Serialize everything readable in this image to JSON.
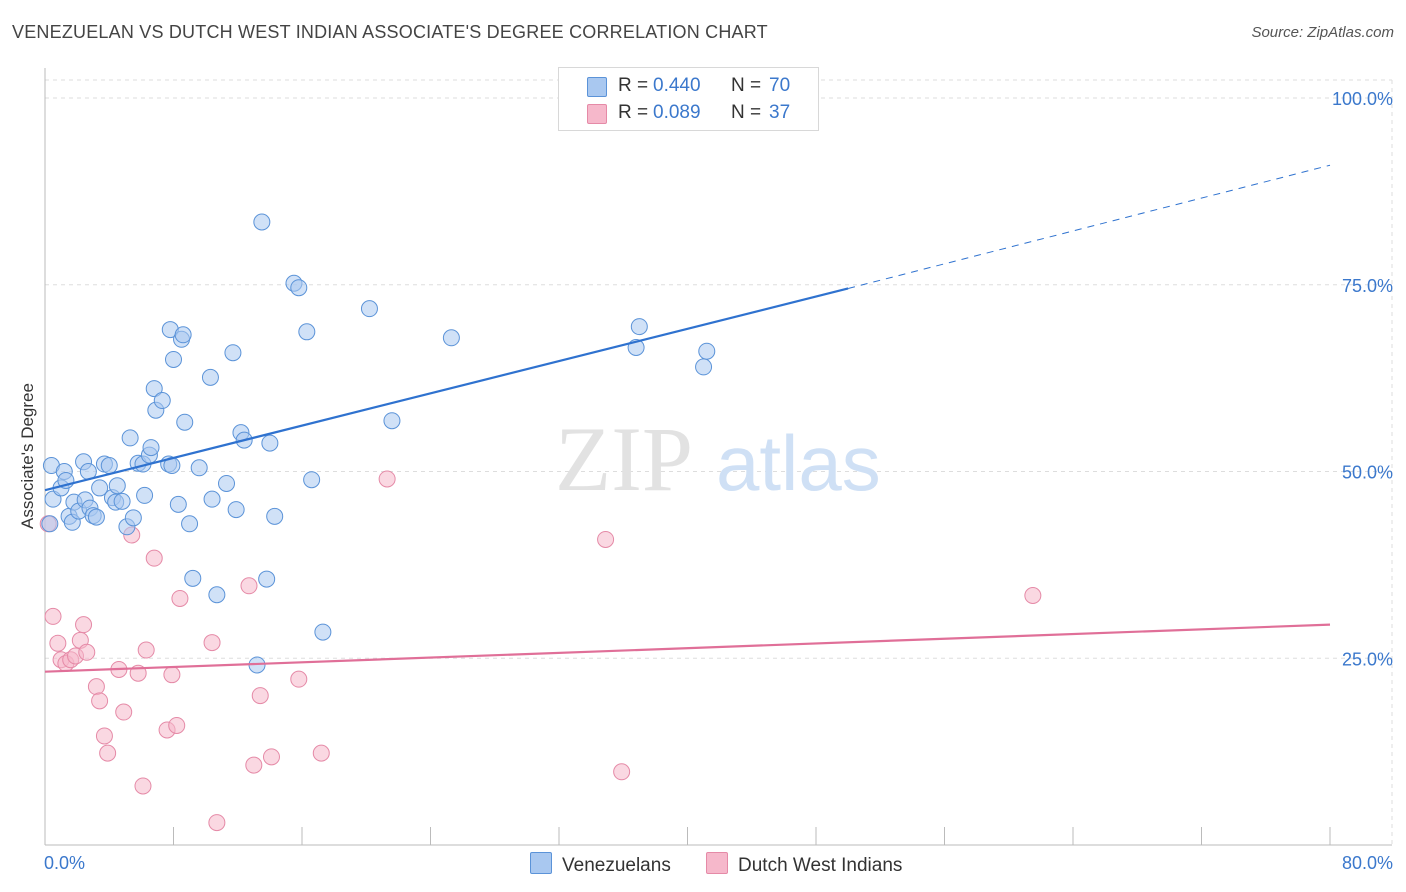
{
  "header": {
    "title": "VENEZUELAN VS DUTCH WEST INDIAN ASSOCIATE'S DEGREE CORRELATION CHART",
    "source": "Source: ZipAtlas.com"
  },
  "watermark": {
    "zip": "ZIP",
    "atlas": "atlas"
  },
  "legend": {
    "rows": [
      {
        "r_label": "R =",
        "r_value": "0.440",
        "n_label": "N =",
        "n_value": "70",
        "color": "#a9c8f0"
      },
      {
        "r_label": "R =",
        "r_value": "0.089",
        "n_label": "N =",
        "n_value": "37",
        "color": "#f6b8cb"
      }
    ]
  },
  "bottom_legend": {
    "venezuelans": "Venezuelans",
    "dutch": "Dutch West Indians"
  },
  "chart_data": {
    "type": "scatter",
    "title": "VENEZUELAN VS DUTCH WEST INDIAN ASSOCIATE'S DEGREE CORRELATION CHART",
    "xlabel": "",
    "ylabel": "Associate's Degree",
    "xlim": [
      0,
      80
    ],
    "ylim": [
      0,
      100
    ],
    "x_tick_labels": [
      "0.0%",
      "80.0%"
    ],
    "y_ticks": [
      25,
      50,
      75,
      100
    ],
    "y_tick_labels": [
      "25.0%",
      "50.0%",
      "75.0%",
      "100.0%"
    ],
    "grid": true,
    "legend_position": "top-center",
    "colors": {
      "venezuelan_fill": "#a9c8f0",
      "venezuelan_stroke": "#5b93d8",
      "venezuelan_line": "#2f72cf",
      "dutch_fill": "#f6b8cb",
      "dutch_stroke": "#e58aa7",
      "dutch_line": "#e06f98",
      "tick_label": "#3b78cc"
    },
    "series": [
      {
        "name": "Venezuelans",
        "r": 0.44,
        "n": 70,
        "trend": {
          "x": [
            0,
            50
          ],
          "y": [
            47.5,
            74.5
          ],
          "dashed_to": [
            80,
            91
          ]
        },
        "points": [
          [
            0.4,
            50.8
          ],
          [
            0.5,
            46.3
          ],
          [
            1.0,
            47.8
          ],
          [
            1.2,
            50.0
          ],
          [
            1.3,
            48.8
          ],
          [
            1.5,
            44.0
          ],
          [
            1.7,
            43.2
          ],
          [
            1.8,
            45.9
          ],
          [
            2.1,
            44.7
          ],
          [
            2.4,
            51.3
          ],
          [
            2.5,
            46.2
          ],
          [
            2.7,
            50.0
          ],
          [
            2.8,
            45.1
          ],
          [
            3.0,
            44.1
          ],
          [
            3.2,
            43.9
          ],
          [
            3.4,
            47.8
          ],
          [
            3.7,
            51.0
          ],
          [
            4.0,
            50.8
          ],
          [
            4.2,
            46.5
          ],
          [
            4.4,
            45.9
          ],
          [
            4.5,
            48.1
          ],
          [
            4.8,
            46.0
          ],
          [
            5.1,
            42.6
          ],
          [
            5.3,
            54.5
          ],
          [
            5.5,
            43.8
          ],
          [
            5.8,
            51.1
          ],
          [
            6.1,
            51.0
          ],
          [
            6.2,
            46.8
          ],
          [
            6.5,
            52.2
          ],
          [
            6.6,
            53.2
          ],
          [
            6.8,
            61.1
          ],
          [
            6.9,
            58.2
          ],
          [
            7.3,
            59.5
          ],
          [
            7.7,
            51.0
          ],
          [
            7.8,
            69.0
          ],
          [
            7.9,
            50.8
          ],
          [
            8.0,
            65.0
          ],
          [
            8.3,
            45.6
          ],
          [
            8.5,
            67.7
          ],
          [
            8.6,
            68.3
          ],
          [
            8.7,
            56.6
          ],
          [
            9.0,
            43.0
          ],
          [
            9.2,
            35.7
          ],
          [
            9.6,
            50.5
          ],
          [
            10.3,
            62.6
          ],
          [
            10.4,
            46.3
          ],
          [
            10.7,
            33.5
          ],
          [
            11.3,
            48.4
          ],
          [
            11.7,
            65.9
          ],
          [
            11.9,
            44.9
          ],
          [
            12.2,
            55.2
          ],
          [
            12.4,
            54.2
          ],
          [
            13.2,
            24.1
          ],
          [
            13.5,
            83.4
          ],
          [
            13.8,
            35.6
          ],
          [
            14.0,
            53.8
          ],
          [
            14.3,
            44.0
          ],
          [
            15.5,
            75.2
          ],
          [
            15.8,
            74.6
          ],
          [
            16.3,
            68.7
          ],
          [
            16.6,
            48.9
          ],
          [
            17.3,
            28.5
          ],
          [
            20.2,
            71.8
          ],
          [
            21.6,
            56.8
          ],
          [
            25.3,
            67.9
          ],
          [
            36.8,
            66.6
          ],
          [
            37.0,
            69.4
          ],
          [
            41.0,
            64.0
          ],
          [
            41.2,
            66.1
          ],
          [
            0.3,
            43.0
          ]
        ]
      },
      {
        "name": "Dutch West Indians",
        "r": 0.089,
        "n": 37,
        "trend": {
          "x": [
            0,
            80
          ],
          "y": [
            23.2,
            29.5
          ]
        },
        "points": [
          [
            0.2,
            43.0
          ],
          [
            0.5,
            30.6
          ],
          [
            0.8,
            27.0
          ],
          [
            1.0,
            24.8
          ],
          [
            1.3,
            24.3
          ],
          [
            1.6,
            24.8
          ],
          [
            1.9,
            25.3
          ],
          [
            2.2,
            27.4
          ],
          [
            2.4,
            29.5
          ],
          [
            2.6,
            25.8
          ],
          [
            3.2,
            21.2
          ],
          [
            3.4,
            19.3
          ],
          [
            3.7,
            14.6
          ],
          [
            3.9,
            12.3
          ],
          [
            4.6,
            23.5
          ],
          [
            4.9,
            17.8
          ],
          [
            5.4,
            41.5
          ],
          [
            5.8,
            23.0
          ],
          [
            6.1,
            7.9
          ],
          [
            6.3,
            26.1
          ],
          [
            6.8,
            38.4
          ],
          [
            7.6,
            15.4
          ],
          [
            7.9,
            22.8
          ],
          [
            8.2,
            16.0
          ],
          [
            8.4,
            33.0
          ],
          [
            10.4,
            27.1
          ],
          [
            10.7,
            3.0
          ],
          [
            12.7,
            34.7
          ],
          [
            13.0,
            10.7
          ],
          [
            13.4,
            20.0
          ],
          [
            14.1,
            11.8
          ],
          [
            15.8,
            22.2
          ],
          [
            17.2,
            12.3
          ],
          [
            21.3,
            49.0
          ],
          [
            34.9,
            40.9
          ],
          [
            35.9,
            9.8
          ],
          [
            61.5,
            33.4
          ]
        ]
      }
    ]
  }
}
